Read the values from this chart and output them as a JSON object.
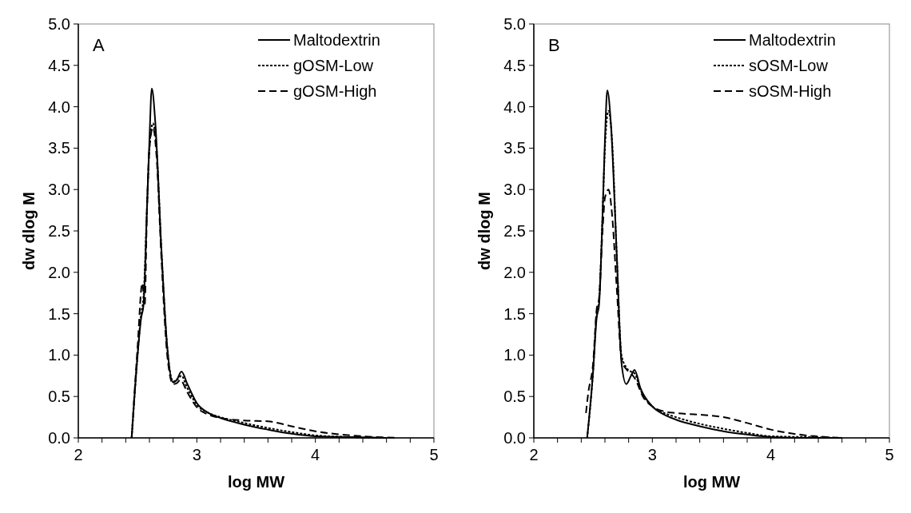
{
  "chart_data": [
    {
      "type": "line",
      "xlabel": "log MW",
      "ylabel": "dw dlog M",
      "annotations": [
        "A"
      ],
      "legend": "top right",
      "xlim": [
        2,
        5
      ],
      "ylim": [
        0,
        5
      ],
      "xticks": [
        2,
        {
          "value": 2.2,
          "label": null
        },
        {
          "value": 2.4,
          "label": null
        },
        {
          "value": 2.6,
          "label": null
        },
        {
          "value": 2.8,
          "label": null
        },
        3,
        {
          "value": 3.2,
          "label": null
        },
        {
          "value": 3.4,
          "label": null
        },
        {
          "value": 3.6,
          "label": null
        },
        {
          "value": 3.8,
          "label": null
        },
        4,
        {
          "value": 4.2,
          "label": null
        },
        {
          "value": 4.4,
          "label": null
        },
        {
          "value": 4.6,
          "label": null
        },
        {
          "value": 4.8,
          "label": null
        },
        5
      ],
      "yticks": [
        {
          "value": 0,
          "label": "0.0"
        },
        {
          "value": 0.5,
          "label": "0.5"
        },
        {
          "value": 1,
          "label": "1.0"
        },
        {
          "value": 1.5,
          "label": "1.5"
        },
        {
          "value": 2,
          "label": "2.0"
        },
        {
          "value": 2.5,
          "label": "2.5"
        },
        {
          "value": 3,
          "label": "3.0"
        },
        {
          "value": 3.5,
          "label": "3.5"
        },
        {
          "value": 4,
          "label": "4.0"
        },
        {
          "value": 4.5,
          "label": "4.5"
        },
        {
          "value": 5,
          "label": "5.0"
        }
      ],
      "series": [
        {
          "name": "Maltodextrin",
          "color": "#000000",
          "line_style": "solid",
          "x": [
            2.45,
            2.5,
            2.53,
            2.55,
            2.58,
            2.6,
            2.62,
            2.65,
            2.7,
            2.75,
            2.8,
            2.83,
            2.87,
            2.92,
            3.0,
            3.1,
            3.2,
            3.4,
            3.6,
            3.8,
            4.0,
            4.3,
            4.6
          ],
          "values": [
            0,
            1.0,
            1.45,
            1.6,
            2.8,
            3.6,
            4.22,
            3.8,
            2.3,
            1.1,
            0.67,
            0.7,
            0.8,
            0.65,
            0.42,
            0.3,
            0.24,
            0.16,
            0.1,
            0.05,
            0.02,
            0.01,
            0
          ]
        },
        {
          "name": "gOSM-Low",
          "color": "#000000",
          "line_style": "dotted",
          "x": [
            2.45,
            2.5,
            2.53,
            2.55,
            2.58,
            2.6,
            2.63,
            2.66,
            2.7,
            2.75,
            2.8,
            2.83,
            2.87,
            2.92,
            3.0,
            3.1,
            3.2,
            3.4,
            3.6,
            3.8,
            4.0,
            4.3,
            4.6
          ],
          "values": [
            0,
            1.0,
            1.5,
            1.7,
            2.8,
            3.5,
            3.8,
            3.5,
            2.3,
            1.1,
            0.68,
            0.7,
            0.75,
            0.6,
            0.4,
            0.3,
            0.25,
            0.18,
            0.12,
            0.07,
            0.03,
            0.01,
            0
          ]
        },
        {
          "name": "gOSM-High",
          "color": "#000000",
          "line_style": "dashed",
          "x": [
            2.45,
            2.5,
            2.54,
            2.56,
            2.58,
            2.6,
            2.63,
            2.66,
            2.7,
            2.75,
            2.8,
            2.83,
            2.86,
            2.92,
            3.0,
            3.1,
            3.2,
            3.4,
            3.6,
            3.8,
            4.0,
            4.3,
            4.7
          ],
          "values": [
            0,
            1.1,
            1.87,
            1.6,
            2.8,
            3.5,
            3.75,
            3.4,
            2.2,
            1.0,
            0.65,
            0.66,
            0.7,
            0.55,
            0.37,
            0.28,
            0.24,
            0.21,
            0.2,
            0.14,
            0.08,
            0.03,
            0
          ]
        }
      ]
    },
    {
      "type": "line",
      "xlabel": "log MW",
      "ylabel": "dw dlog M",
      "annotations": [
        "B"
      ],
      "legend": "top right",
      "xlim": [
        2,
        5
      ],
      "ylim": [
        0,
        5
      ],
      "xticks": [
        2,
        {
          "value": 2.2,
          "label": null
        },
        {
          "value": 2.4,
          "label": null
        },
        {
          "value": 2.6,
          "label": null
        },
        {
          "value": 2.8,
          "label": null
        },
        3,
        {
          "value": 3.2,
          "label": null
        },
        {
          "value": 3.4,
          "label": null
        },
        {
          "value": 3.6,
          "label": null
        },
        {
          "value": 3.8,
          "label": null
        },
        4,
        {
          "value": 4.2,
          "label": null
        },
        {
          "value": 4.4,
          "label": null
        },
        {
          "value": 4.6,
          "label": null
        },
        {
          "value": 4.8,
          "label": null
        },
        5
      ],
      "yticks": [
        {
          "value": 0,
          "label": "0.0"
        },
        {
          "value": 0.5,
          "label": "0.5"
        },
        {
          "value": 1,
          "label": "1.0"
        },
        {
          "value": 1.5,
          "label": "1.5"
        },
        {
          "value": 2,
          "label": "2.0"
        },
        {
          "value": 2.5,
          "label": "2.5"
        },
        {
          "value": 3,
          "label": "3.0"
        },
        {
          "value": 3.5,
          "label": "3.5"
        },
        {
          "value": 4,
          "label": "4.0"
        },
        {
          "value": 4.5,
          "label": "4.5"
        },
        {
          "value": 5,
          "label": "5.0"
        }
      ],
      "series": [
        {
          "name": "Maltodextrin",
          "color": "#000000",
          "line_style": "solid",
          "x": [
            2.45,
            2.5,
            2.53,
            2.55,
            2.58,
            2.6,
            2.62,
            2.65,
            2.7,
            2.74,
            2.78,
            2.82,
            2.85,
            2.9,
            3.0,
            3.1,
            3.2,
            3.4,
            3.6,
            3.8,
            4.0,
            4.3,
            4.6
          ],
          "values": [
            0,
            0.8,
            1.45,
            1.6,
            2.7,
            3.6,
            4.2,
            3.8,
            2.2,
            0.9,
            0.65,
            0.75,
            0.82,
            0.6,
            0.38,
            0.28,
            0.22,
            0.14,
            0.08,
            0.04,
            0.01,
            0.0,
            0
          ]
        },
        {
          "name": "sOSM-Low",
          "color": "#000000",
          "line_style": "dotted",
          "x": [
            2.45,
            2.5,
            2.53,
            2.55,
            2.58,
            2.6,
            2.63,
            2.66,
            2.7,
            2.74,
            2.78,
            2.82,
            2.85,
            2.9,
            3.0,
            3.1,
            3.2,
            3.4,
            3.6,
            3.8,
            4.0,
            4.3,
            4.6
          ],
          "values": [
            0,
            0.8,
            1.5,
            1.65,
            2.7,
            3.5,
            3.95,
            3.6,
            2.2,
            1.0,
            0.85,
            0.8,
            0.78,
            0.58,
            0.38,
            0.3,
            0.25,
            0.17,
            0.11,
            0.06,
            0.02,
            0.01,
            0
          ]
        },
        {
          "name": "sOSM-High",
          "color": "#000000",
          "line_style": "dashed",
          "x": [
            2.44,
            2.46,
            2.5,
            2.53,
            2.55,
            2.58,
            2.6,
            2.63,
            2.66,
            2.7,
            2.74,
            2.78,
            2.82,
            2.86,
            2.92,
            3.0,
            3.1,
            3.2,
            3.4,
            3.6,
            3.8,
            4.0,
            4.3,
            4.6
          ],
          "values": [
            0.3,
            0.55,
            0.9,
            1.55,
            1.68,
            2.5,
            2.9,
            3.0,
            2.7,
            1.8,
            0.95,
            0.83,
            0.78,
            0.7,
            0.5,
            0.38,
            0.32,
            0.3,
            0.28,
            0.25,
            0.18,
            0.1,
            0.03,
            0
          ]
        }
      ]
    }
  ]
}
